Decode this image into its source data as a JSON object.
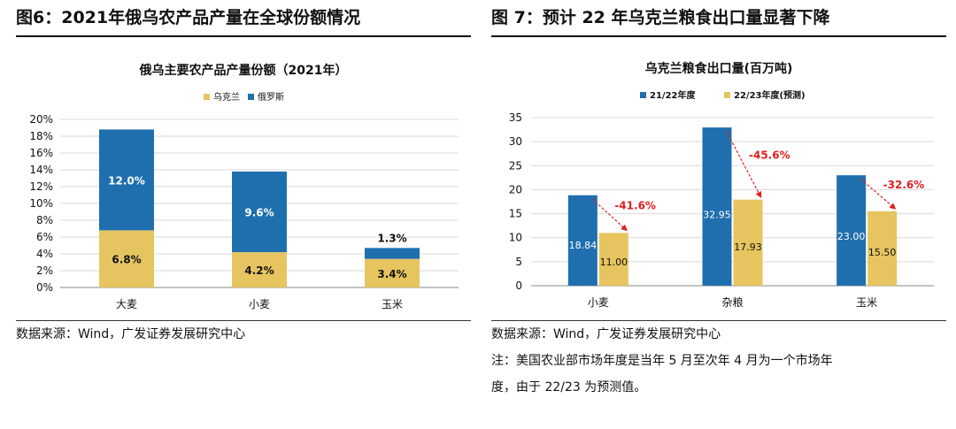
{
  "left": {
    "figure_title": "图6：2021年俄乌农产品产量在全球份额情况",
    "source": "数据来源：Wind，广发证券发展研究中心"
  },
  "right": {
    "figure_title": "图 7：预计 22 年乌克兰粮食出口量显著下降",
    "source": "数据来源：Wind，广发证券发展研究中心",
    "note_line1": "注：美国农业部市场年度是当年 5 月至次年 4 月为一个市场年",
    "note_line2": "度，由于 22/23 为预测值。"
  },
  "colors": {
    "blue": "#1f6fae",
    "yellow": "#e6c560",
    "red": "#e02020",
    "grid": "#d9d9d9"
  },
  "chart_data": [
    {
      "type": "bar",
      "stacked": true,
      "title": "俄乌主要农产品产量份额（2021年）",
      "categories": [
        "大麦",
        "小麦",
        "玉米"
      ],
      "series": [
        {
          "name": "乌克兰",
          "values": [
            6.8,
            4.2,
            3.4
          ],
          "labels": [
            "6.8%",
            "4.2%",
            "3.4%"
          ],
          "color": "#e6c560"
        },
        {
          "name": "俄罗斯",
          "values": [
            12.0,
            9.6,
            1.3
          ],
          "labels": [
            "12.0%",
            "9.6%",
            "1.3%"
          ],
          "color": "#1f6fae"
        }
      ],
      "ylim": [
        0,
        20
      ],
      "yticks": [
        "0%",
        "2%",
        "4%",
        "6%",
        "8%",
        "10%",
        "12%",
        "14%",
        "16%",
        "18%",
        "20%"
      ],
      "legend": "top-center",
      "grid": true,
      "xlabel": "",
      "ylabel": ""
    },
    {
      "type": "bar",
      "stacked": false,
      "title": "乌克兰粮食出口量(百万吨)",
      "categories": [
        "小麦",
        "杂粮",
        "玉米"
      ],
      "series": [
        {
          "name": "21/22年度",
          "values": [
            18.84,
            32.95,
            23.0
          ],
          "labels": [
            "18.84",
            "32.95",
            "23.00"
          ],
          "color": "#1f6fae"
        },
        {
          "name": "22/23年度(预测)",
          "values": [
            11.0,
            17.93,
            15.5
          ],
          "labels": [
            "11.00",
            "17.93",
            "15.50"
          ],
          "color": "#e6c560"
        }
      ],
      "annotations": [
        "-41.6%",
        "-45.6%",
        "-32.6%"
      ],
      "ylim": [
        0,
        35
      ],
      "yticks": [
        "0",
        "5",
        "10",
        "15",
        "20",
        "25",
        "30",
        "35"
      ],
      "legend": "top-center",
      "grid": true,
      "xlabel": "",
      "ylabel": ""
    }
  ]
}
